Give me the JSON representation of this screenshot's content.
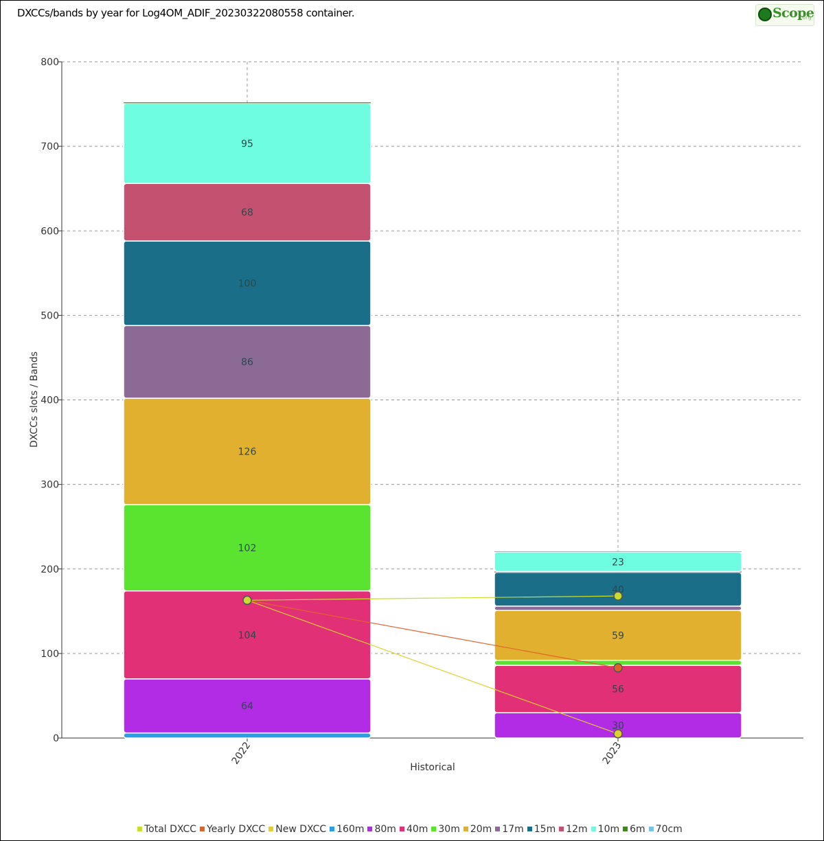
{
  "logo": {
    "text": "Scope",
    "subtext": ".org"
  },
  "chart_data": {
    "type": "bar",
    "title": "DXCCs/bands by year for Log4OM_ADIF_20230322080558 container.",
    "xlabel": "Historical",
    "ylabel": "DXCCs slots / Bands",
    "ylim": [
      0,
      800
    ],
    "yticks": [
      0,
      100,
      200,
      300,
      400,
      500,
      600,
      700,
      800
    ],
    "grid": true,
    "legend_position": "bottom",
    "categories": [
      "2022",
      "2023"
    ],
    "series": [
      {
        "name": "160m",
        "color": "#2a9fe6",
        "values": [
          6,
          0
        ]
      },
      {
        "name": "80m",
        "color": "#b12ce4",
        "values": [
          64,
          30
        ]
      },
      {
        "name": "40m",
        "color": "#e23077",
        "values": [
          104,
          56
        ]
      },
      {
        "name": "30m",
        "color": "#5ae32f",
        "values": [
          102,
          6
        ]
      },
      {
        "name": "20m",
        "color": "#e2b02f",
        "values": [
          126,
          59
        ]
      },
      {
        "name": "17m",
        "color": "#8b6a96",
        "values": [
          86,
          5
        ]
      },
      {
        "name": "15m",
        "color": "#1b6e88",
        "values": [
          100,
          40
        ]
      },
      {
        "name": "12m",
        "color": "#c4516f",
        "values": [
          68,
          1
        ]
      },
      {
        "name": "10m",
        "color": "#6ffde2",
        "values": [
          95,
          23
        ]
      },
      {
        "name": "6m",
        "color": "#3d8a16",
        "values": [
          1,
          0
        ]
      },
      {
        "name": "70cm",
        "color": "#6ec6f0",
        "values": [
          0,
          1
        ]
      }
    ],
    "segment_labels": {
      "2022": [
        "",
        "64",
        "104",
        "102",
        "126",
        "86",
        "100",
        "68",
        "95",
        "",
        ""
      ],
      "2023": [
        "",
        "30",
        "56",
        "",
        "59",
        "",
        "40",
        "",
        "23",
        "",
        ""
      ]
    },
    "lines": [
      {
        "name": "Total DXCC",
        "color": "#c9dd2e",
        "values": [
          163,
          168
        ]
      },
      {
        "name": "Yearly DXCC",
        "color": "#e0642a",
        "values": [
          163,
          83
        ]
      },
      {
        "name": "New DXCC",
        "color": "#e0d02a",
        "values": [
          163,
          5
        ]
      }
    ],
    "legend": [
      "Total DXCC",
      "Yearly DXCC",
      "New DXCC",
      "160m",
      "80m",
      "40m",
      "30m",
      "20m",
      "17m",
      "15m",
      "12m",
      "10m",
      "6m",
      "70cm"
    ]
  }
}
